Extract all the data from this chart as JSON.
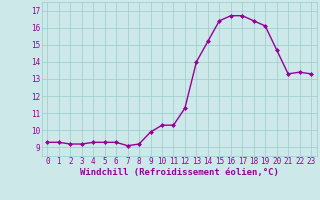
{
  "x": [
    0,
    1,
    2,
    3,
    4,
    5,
    6,
    7,
    8,
    9,
    10,
    11,
    12,
    13,
    14,
    15,
    16,
    17,
    18,
    19,
    20,
    21,
    22,
    23
  ],
  "y": [
    9.3,
    9.3,
    9.2,
    9.2,
    9.3,
    9.3,
    9.3,
    9.1,
    9.2,
    9.9,
    10.3,
    10.3,
    11.3,
    14.0,
    15.2,
    16.4,
    16.7,
    16.7,
    16.4,
    16.1,
    14.7,
    13.3,
    13.4,
    13.3
  ],
  "line_color": "#990099",
  "marker": "D",
  "marker_size": 2.0,
  "xlabel": "Windchill (Refroidissement éolien,°C)",
  "xlabel_fontsize": 6.5,
  "ylim": [
    8.5,
    17.5
  ],
  "xlim": [
    -0.5,
    23.5
  ],
  "yticks": [
    9,
    10,
    11,
    12,
    13,
    14,
    15,
    16,
    17
  ],
  "xticks": [
    0,
    1,
    2,
    3,
    4,
    5,
    6,
    7,
    8,
    9,
    10,
    11,
    12,
    13,
    14,
    15,
    16,
    17,
    18,
    19,
    20,
    21,
    22,
    23
  ],
  "background_color": "#cce8e8",
  "grid_color": "#99cccc",
  "tick_color": "#990099",
  "tick_fontsize": 5.5,
  "line_width": 1.0
}
